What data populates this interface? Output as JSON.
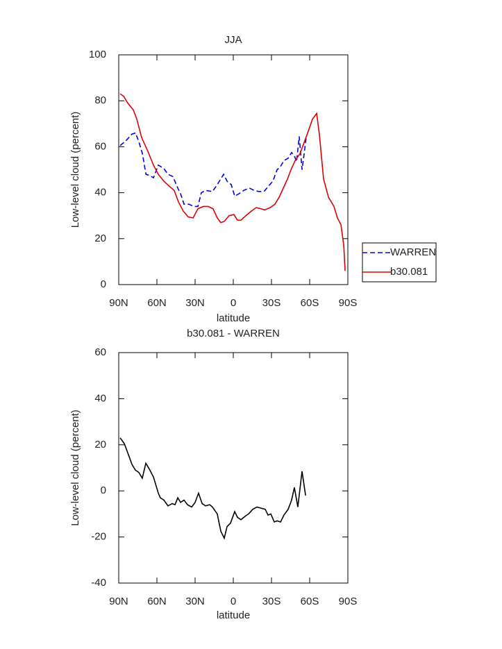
{
  "chart_data": [
    {
      "type": "line",
      "title": "JJA",
      "x_label": "latitude",
      "y_label": "Low-level cloud (percent)",
      "xlim": [
        90,
        -90
      ],
      "xticks": [
        {
          "value": 90,
          "label": "90N"
        },
        {
          "value": 60,
          "label": "60N"
        },
        {
          "value": 30,
          "label": "30N"
        },
        0,
        {
          "value": -30,
          "label": "30S"
        },
        {
          "value": -60,
          "label": "60S"
        },
        {
          "value": -90,
          "label": "90S"
        }
      ],
      "ylim": [
        0,
        100
      ],
      "yticks": [
        0,
        20,
        40,
        60,
        80,
        100
      ],
      "legend_position": "right",
      "series": [
        {
          "name": "WARREN",
          "color": "#0000dd",
          "line_style": "dashed",
          "x": [
            88.9,
            84.5,
            79.6,
            76.8,
            74.1,
            71.4,
            68.6,
            65.9,
            62.7,
            58.9,
            54.5,
            51.3,
            47.4,
            43.6,
            41.4,
            38.7,
            34.9,
            31.1,
            27.8,
            25.1,
            21.8,
            16.4,
            12.6,
            7.6,
            4.9,
            1.6,
            -1.1,
            -4.4,
            -8.2,
            -12.6,
            -16.4,
            -20.2,
            -24.1,
            -27.9,
            -31.1,
            -34.4,
            -36.6,
            -39.9,
            -43.1,
            -45.8,
            -48.0,
            -49.7,
            -51.8,
            -54.0,
            -57.3
          ],
          "values": [
            60.5,
            62.5,
            65.5,
            66,
            62,
            57,
            48,
            47.5,
            46.5,
            52,
            50.5,
            48,
            47,
            42,
            39.5,
            35,
            35,
            34,
            34,
            40,
            41,
            40.5,
            43.5,
            48,
            45,
            43.5,
            38.5,
            39.5,
            41,
            42,
            41,
            40.5,
            40.5,
            43,
            45,
            50,
            51,
            54,
            55,
            57.5,
            56,
            53.5,
            64.5,
            50,
            64
          ]
        },
        {
          "name": "b30.081",
          "color": "#dd0000",
          "line_style": "solid",
          "x": [
            88.9,
            86.2,
            82.9,
            78.5,
            75.8,
            72,
            67.1,
            62.7,
            58.9,
            54.5,
            50.7,
            46.4,
            43.1,
            39.3,
            35.5,
            31.6,
            27.8,
            23.5,
            19.7,
            15.9,
            12.6,
            9.8,
            7.1,
            3.3,
            -0.5,
            -3.3,
            -6,
            -9.8,
            -14.2,
            -18,
            -21.8,
            -24.6,
            -28.9,
            -32.7,
            -36,
            -39.3,
            -42.6,
            -45.3,
            -48.6,
            -52.4,
            -55.1,
            -58.4,
            -62.2,
            -65.5,
            -67.7,
            -70.9,
            -74.8,
            -79.1,
            -81.8,
            -84.6,
            -86.8,
            -87.8
          ],
          "values": [
            83,
            82,
            79,
            76,
            72,
            64,
            58,
            52,
            48,
            45,
            43,
            41,
            36,
            32,
            29.5,
            29,
            33,
            34,
            34,
            33,
            29,
            27,
            27.5,
            30,
            30.5,
            28,
            28,
            30,
            32,
            33.5,
            33,
            32.5,
            33.5,
            35,
            38,
            42,
            46,
            50,
            54,
            57,
            61,
            66,
            72,
            74.5,
            65,
            46,
            38,
            34,
            29,
            26,
            17,
            6
          ]
        }
      ]
    },
    {
      "type": "line",
      "title": "b30.081 - WARREN",
      "x_label": "latitude",
      "y_label": "Low-level cloud (percent)",
      "xlim": [
        90,
        -90
      ],
      "xticks": [
        {
          "value": 90,
          "label": "90N"
        },
        {
          "value": 60,
          "label": "60N"
        },
        {
          "value": 30,
          "label": "30N"
        },
        0,
        {
          "value": -30,
          "label": "30S"
        },
        {
          "value": -60,
          "label": "60S"
        },
        {
          "value": -90,
          "label": "90S"
        }
      ],
      "ylim": [
        -40,
        60
      ],
      "yticks": [
        -40,
        -20,
        0,
        20,
        40,
        60
      ],
      "series": [
        {
          "color": "#000000",
          "line_style": "solid",
          "x": [
            88.9,
            85.6,
            82.9,
            79.6,
            76.9,
            74.2,
            71.5,
            68.7,
            66,
            62.7,
            58.9,
            57.3,
            54.5,
            51.3,
            48,
            45.8,
            43.6,
            41.4,
            38.7,
            36,
            32.7,
            30,
            27.3,
            24.5,
            21.8,
            18.5,
            16.4,
            12.6,
            9.8,
            7.1,
            4.9,
            2.2,
            -1.1,
            -3.3,
            -6,
            -9.3,
            -12,
            -15.3,
            -18.6,
            -21.8,
            -25.1,
            -27.3,
            -29.5,
            -32.2,
            -34.4,
            -37.1,
            -39.8,
            -43.1,
            -45.8,
            -48,
            -50.7,
            -54,
            -56.8
          ],
          "values": [
            23,
            20.5,
            16.5,
            11.5,
            9,
            8,
            5.5,
            12,
            9.5,
            6,
            -1,
            -3,
            -4,
            -6.5,
            -5.5,
            -6,
            -3,
            -5,
            -4,
            -6,
            -7,
            -5,
            -1,
            -5.5,
            -6.5,
            -6,
            -7,
            -10,
            -17.5,
            -20.5,
            -15.5,
            -14,
            -9,
            -11.5,
            -12.5,
            -11,
            -10,
            -8,
            -7,
            -7.5,
            -8,
            -10.5,
            -10,
            -13.5,
            -13,
            -13.5,
            -10.5,
            -8,
            -4,
            1.5,
            -7,
            8.5,
            -2
          ]
        }
      ]
    }
  ]
}
